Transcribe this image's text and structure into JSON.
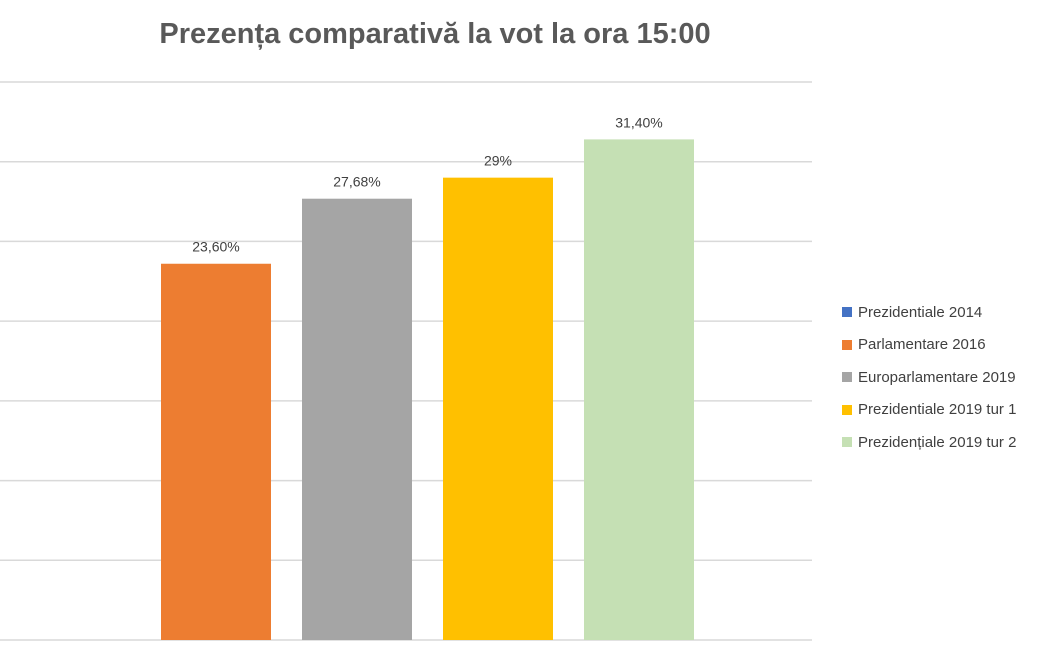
{
  "chart_data": {
    "type": "bar",
    "title": "Prezența comparativă la vot la ora 15:00",
    "xlabel": "",
    "ylabel": "",
    "ylim": [
      0,
      35
    ],
    "grid_step": 5,
    "grid": true,
    "legend_position": "right",
    "series": [
      {
        "name": "Prezidentiale 2014",
        "value": null,
        "label": "",
        "color": "#4472C4"
      },
      {
        "name": "Parlamentare 2016",
        "value": 23.6,
        "label": "23,60%",
        "color": "#ED7D31"
      },
      {
        "name": "Europarlamentare 2019",
        "value": 27.68,
        "label": "27,68%",
        "color": "#A5A5A5"
      },
      {
        "name": "Prezidentiale 2019 tur 1",
        "value": 29,
        "label": "29%",
        "color": "#FFC000"
      },
      {
        "name": "Prezidențiale 2019 tur 2",
        "value": 31.4,
        "label": "31,40%",
        "color": "#C5E0B4"
      }
    ]
  }
}
